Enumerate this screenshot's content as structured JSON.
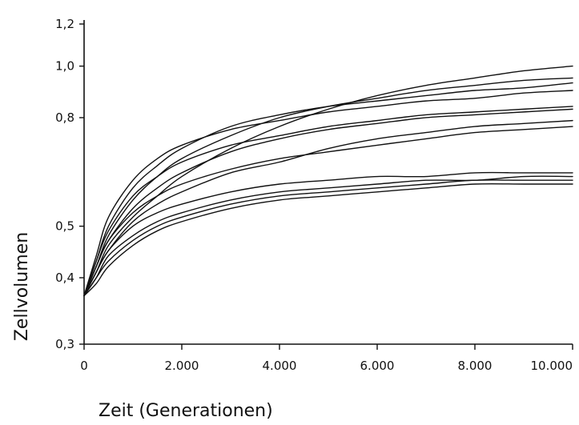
{
  "chart_data": {
    "type": "line",
    "title": "",
    "xlabel": "Zeit (Generationen)",
    "ylabel": "Zellvolumen",
    "xlim": [
      0,
      10000
    ],
    "ylim": [
      0.3,
      1.2
    ],
    "y_scale": "log",
    "grid": false,
    "legend": "none",
    "line_color": "#111111",
    "x_ticks": [
      {
        "value": 0,
        "label": "0"
      },
      {
        "value": 2000,
        "label": "2.000"
      },
      {
        "value": 4000,
        "label": "4.000"
      },
      {
        "value": 6000,
        "label": "6.000"
      },
      {
        "value": 8000,
        "label": "8.000"
      },
      {
        "value": 10000,
        "label": "10.000"
      }
    ],
    "y_ticks": [
      {
        "value": 0.3,
        "label": "0,3"
      },
      {
        "value": 0.4,
        "label": "0,4"
      },
      {
        "value": 0.5,
        "label": "0,5"
      },
      {
        "value": 0.8,
        "label": "0,8"
      },
      {
        "value": 1.0,
        "label": "1,0"
      },
      {
        "value": 1.2,
        "label": "1,2"
      }
    ],
    "x": [
      0,
      250,
      500,
      1000,
      1500,
      2000,
      3000,
      4000,
      5000,
      6000,
      7000,
      8000,
      9000,
      10000
    ],
    "series": [
      {
        "values": [
          0.37,
          0.41,
          0.46,
          0.52,
          0.57,
          0.62,
          0.7,
          0.77,
          0.83,
          0.88,
          0.92,
          0.95,
          0.98,
          1.0
        ]
      },
      {
        "values": [
          0.37,
          0.42,
          0.48,
          0.56,
          0.62,
          0.67,
          0.74,
          0.8,
          0.84,
          0.87,
          0.9,
          0.92,
          0.94,
          0.95
        ]
      },
      {
        "values": [
          0.37,
          0.43,
          0.5,
          0.59,
          0.65,
          0.7,
          0.77,
          0.81,
          0.84,
          0.86,
          0.88,
          0.9,
          0.91,
          0.93
        ]
      },
      {
        "values": [
          0.37,
          0.44,
          0.52,
          0.61,
          0.67,
          0.71,
          0.76,
          0.79,
          0.82,
          0.84,
          0.86,
          0.87,
          0.89,
          0.9
        ]
      },
      {
        "values": [
          0.37,
          0.43,
          0.49,
          0.57,
          0.62,
          0.66,
          0.71,
          0.74,
          0.77,
          0.79,
          0.81,
          0.82,
          0.83,
          0.84
        ]
      },
      {
        "values": [
          0.37,
          0.42,
          0.47,
          0.54,
          0.59,
          0.63,
          0.69,
          0.73,
          0.76,
          0.78,
          0.8,
          0.81,
          0.82,
          0.83
        ]
      },
      {
        "values": [
          0.37,
          0.41,
          0.45,
          0.51,
          0.55,
          0.58,
          0.63,
          0.66,
          0.7,
          0.73,
          0.75,
          0.77,
          0.78,
          0.79
        ]
      },
      {
        "values": [
          0.37,
          0.42,
          0.47,
          0.53,
          0.57,
          0.6,
          0.64,
          0.67,
          0.69,
          0.71,
          0.73,
          0.75,
          0.76,
          0.77
        ]
      },
      {
        "values": [
          0.37,
          0.41,
          0.45,
          0.5,
          0.53,
          0.55,
          0.58,
          0.6,
          0.61,
          0.62,
          0.62,
          0.63,
          0.63,
          0.63
        ]
      },
      {
        "values": [
          0.37,
          0.4,
          0.44,
          0.48,
          0.51,
          0.53,
          0.56,
          0.58,
          0.59,
          0.6,
          0.61,
          0.61,
          0.62,
          0.62
        ]
      },
      {
        "values": [
          0.37,
          0.4,
          0.43,
          0.47,
          0.5,
          0.52,
          0.55,
          0.57,
          0.58,
          0.59,
          0.6,
          0.61,
          0.61,
          0.61
        ]
      },
      {
        "values": [
          0.37,
          0.39,
          0.42,
          0.46,
          0.49,
          0.51,
          0.54,
          0.56,
          0.57,
          0.58,
          0.59,
          0.6,
          0.6,
          0.6
        ]
      }
    ]
  }
}
